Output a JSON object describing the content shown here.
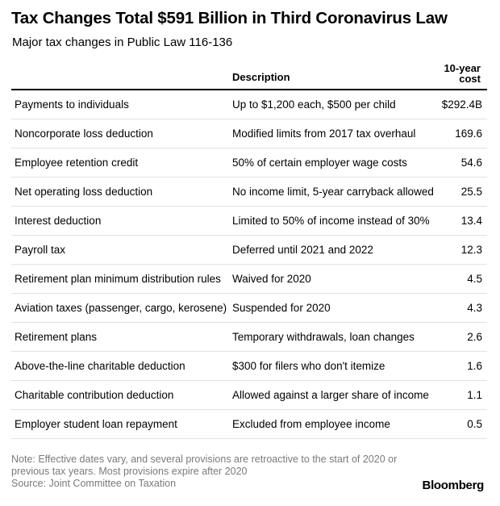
{
  "title": "Tax Changes Total $591 Billion in Third Coronavirus Law",
  "subtitle": "Major tax changes in Public Law 116-136",
  "chart_data": {
    "type": "table",
    "columns": [
      "",
      "Description",
      "10-year cost"
    ],
    "header": {
      "description": "Description",
      "cost_line1": "10-year",
      "cost_line2": "cost"
    },
    "rows": [
      {
        "name": "Payments to individuals",
        "description": "Up to $1,200 each, $500 per child",
        "cost": "$292.4B"
      },
      {
        "name": "Noncorporate loss deduction",
        "description": "Modified limits from 2017 tax overhaul",
        "cost": "169.6"
      },
      {
        "name": "Employee retention credit",
        "description": "50% of certain employer wage costs",
        "cost": "54.6"
      },
      {
        "name": "Net operating loss deduction",
        "description": "No income limit, 5-year carryback allowed",
        "cost": "25.5"
      },
      {
        "name": "Interest deduction",
        "description": "Limited to 50% of income instead of 30%",
        "cost": "13.4"
      },
      {
        "name": "Payroll tax",
        "description": "Deferred until 2021 and 2022",
        "cost": "12.3"
      },
      {
        "name": "Retirement plan minimum distribution rules",
        "description": "Waived for 2020",
        "cost": "4.5"
      },
      {
        "name": "Aviation taxes (passenger, cargo, kerosene)",
        "description": "Suspended for 2020",
        "cost": "4.3"
      },
      {
        "name": "Retirement plans",
        "description": "Temporary withdrawals, loan changes",
        "cost": "2.6"
      },
      {
        "name": "Above-the-line charitable deduction",
        "description": "$300 for filers who don't itemize",
        "cost": "1.6"
      },
      {
        "name": "Charitable contribution deduction",
        "description": "Allowed against a larger share of income",
        "cost": "1.1"
      },
      {
        "name": "Employer student loan repayment",
        "description": "Excluded from employee income",
        "cost": "0.5"
      }
    ]
  },
  "note": {
    "line1": "Note: Effective dates vary, and several provisions are retroactive to the start of 2020 or",
    "line2": "previous tax years. Most provisions expire after 2020",
    "source": "Source: Joint Committee on Taxation"
  },
  "logo": "Bloomberg",
  "colors": {
    "text": "#000000",
    "note": "#7a7a7a",
    "row_divider": "#e2e2e2"
  }
}
